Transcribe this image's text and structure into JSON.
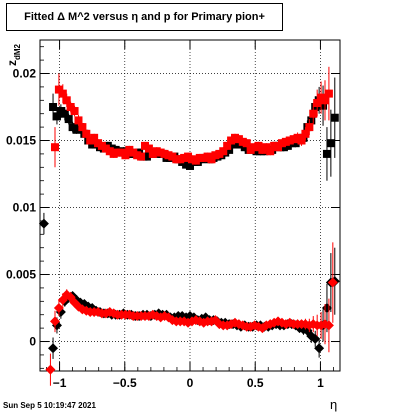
{
  "title": "Fitted Δ M^2 versus η and p for Primary pion+",
  "footer": "Sun Sep  5 10:19:47 2021",
  "chart_data": {
    "type": "scatter",
    "title": "Fitted Δ M^2 versus η and p for Primary pion+",
    "xlabel": "η",
    "ylabel": "z_{dM2}",
    "xlim": [
      -1.15,
      1.15
    ],
    "ylim": [
      -0.0022,
      0.0225
    ],
    "x_ticks": [
      "−1",
      "−0.5",
      "0",
      "0.5",
      "1"
    ],
    "y_ticks": [
      "0",
      "0.005",
      "0.01",
      "0.015",
      "0.02"
    ],
    "grid": true,
    "series": [
      {
        "color": "#000000",
        "marker": "square",
        "x": [
          -1.05,
          -1.02,
          -0.99,
          -0.96,
          -0.93,
          -0.9,
          -0.87,
          -0.84,
          -0.81,
          -0.78,
          -0.75,
          -0.72,
          -0.69,
          -0.66,
          -0.63,
          -0.6,
          -0.57,
          -0.54,
          -0.51,
          -0.48,
          -0.45,
          -0.42,
          -0.39,
          -0.36,
          -0.33,
          -0.3,
          -0.27,
          -0.24,
          -0.21,
          -0.18,
          -0.15,
          -0.12,
          -0.09,
          -0.06,
          -0.03,
          0.0,
          0.03,
          0.06,
          0.09,
          0.12,
          0.15,
          0.18,
          0.21,
          0.24,
          0.27,
          0.3,
          0.33,
          0.36,
          0.39,
          0.42,
          0.45,
          0.48,
          0.51,
          0.54,
          0.57,
          0.6,
          0.63,
          0.66,
          0.69,
          0.72,
          0.75,
          0.78,
          0.81,
          0.84,
          0.87,
          0.9,
          0.93,
          0.96,
          0.99,
          1.02,
          1.05,
          1.08,
          1.11
        ],
        "y": [
          0.0175,
          0.0168,
          0.0172,
          0.017,
          0.0166,
          0.016,
          0.0158,
          0.016,
          0.0155,
          0.015,
          0.0147,
          0.0147,
          0.0145,
          0.0144,
          0.0146,
          0.0144,
          0.0143,
          0.0141,
          0.0142,
          0.014,
          0.014,
          0.014,
          0.0141,
          0.0138,
          0.0138,
          0.014,
          0.0141,
          0.014,
          0.014,
          0.0137,
          0.0137,
          0.0138,
          0.0136,
          0.0134,
          0.0132,
          0.0131,
          0.0134,
          0.0134,
          0.0136,
          0.0137,
          0.0136,
          0.0137,
          0.0138,
          0.0139,
          0.0141,
          0.0143,
          0.0147,
          0.0148,
          0.0147,
          0.0145,
          0.0143,
          0.0144,
          0.0142,
          0.0142,
          0.0142,
          0.0143,
          0.0143,
          0.0146,
          0.0145,
          0.0145,
          0.0146,
          0.0148,
          0.0148,
          0.015,
          0.0152,
          0.016,
          0.0165,
          0.0175,
          0.018,
          0.0176,
          0.014,
          0.0148,
          0.0167
        ],
        "err": [
          0.001,
          0.0006,
          0.0005,
          0.0005,
          0.0004,
          0.0004,
          0.0003,
          0.0003,
          0.0003,
          0.0003,
          0.0003,
          0.0003,
          0.0003,
          0.0003,
          0.0003,
          0.0003,
          0.0003,
          0.0003,
          0.0003,
          0.0003,
          0.0003,
          0.0003,
          0.0003,
          0.0003,
          0.0003,
          0.0003,
          0.0003,
          0.0003,
          0.0003,
          0.0003,
          0.0003,
          0.0003,
          0.0003,
          0.0003,
          0.0003,
          0.0003,
          0.0003,
          0.0003,
          0.0003,
          0.0003,
          0.0003,
          0.0003,
          0.0003,
          0.0003,
          0.0003,
          0.0003,
          0.0003,
          0.0003,
          0.0003,
          0.0003,
          0.0003,
          0.0003,
          0.0003,
          0.0003,
          0.0003,
          0.0003,
          0.0003,
          0.0003,
          0.0003,
          0.0003,
          0.0003,
          0.0003,
          0.0003,
          0.0003,
          0.0004,
          0.0005,
          0.0006,
          0.0008,
          0.001,
          0.0015,
          0.002,
          0.0025,
          0.003
        ]
      },
      {
        "color": "#ff0000",
        "marker": "square",
        "x": [
          -1.035,
          -1.005,
          -0.975,
          -0.945,
          -0.915,
          -0.885,
          -0.855,
          -0.825,
          -0.795,
          -0.765,
          -0.735,
          -0.705,
          -0.675,
          -0.645,
          -0.615,
          -0.585,
          -0.555,
          -0.525,
          -0.495,
          -0.465,
          -0.435,
          -0.405,
          -0.375,
          -0.345,
          -0.315,
          -0.285,
          -0.255,
          -0.225,
          -0.195,
          -0.165,
          -0.135,
          -0.105,
          -0.075,
          -0.045,
          -0.015,
          0.015,
          0.045,
          0.075,
          0.105,
          0.135,
          0.165,
          0.195,
          0.225,
          0.255,
          0.285,
          0.315,
          0.345,
          0.375,
          0.405,
          0.435,
          0.465,
          0.495,
          0.525,
          0.555,
          0.585,
          0.615,
          0.645,
          0.675,
          0.705,
          0.735,
          0.765,
          0.795,
          0.825,
          0.855,
          0.885,
          0.915,
          0.945,
          0.975,
          1.005,
          1.035,
          1.065
        ],
        "y": [
          0.0145,
          0.0188,
          0.0185,
          0.018,
          0.0175,
          0.0172,
          0.0165,
          0.016,
          0.0155,
          0.015,
          0.0152,
          0.0148,
          0.0146,
          0.0144,
          0.0142,
          0.014,
          0.0141,
          0.0141,
          0.0139,
          0.0143,
          0.0141,
          0.0139,
          0.0138,
          0.0146,
          0.0144,
          0.014,
          0.0142,
          0.0141,
          0.014,
          0.0139,
          0.0138,
          0.0136,
          0.0136,
          0.0137,
          0.0138,
          0.0136,
          0.0135,
          0.0137,
          0.0137,
          0.0138,
          0.0136,
          0.0139,
          0.014,
          0.0142,
          0.0146,
          0.015,
          0.0152,
          0.0151,
          0.0149,
          0.0148,
          0.0143,
          0.0145,
          0.0146,
          0.0143,
          0.0145,
          0.0142,
          0.0146,
          0.0145,
          0.0148,
          0.0149,
          0.015,
          0.0151,
          0.0152,
          0.015,
          0.0155,
          0.016,
          0.017,
          0.0178,
          0.0182,
          0.018,
          0.0185
        ],
        "err": [
          0.0015,
          0.0012,
          0.0007,
          0.0005,
          0.0004,
          0.0004,
          0.0004,
          0.0003,
          0.0003,
          0.0003,
          0.0003,
          0.0003,
          0.0003,
          0.0003,
          0.0003,
          0.0003,
          0.0003,
          0.0003,
          0.0003,
          0.0003,
          0.0003,
          0.0003,
          0.0003,
          0.0003,
          0.0003,
          0.0003,
          0.0003,
          0.0003,
          0.0003,
          0.0003,
          0.0003,
          0.0003,
          0.0003,
          0.0003,
          0.0003,
          0.0003,
          0.0003,
          0.0003,
          0.0003,
          0.0003,
          0.0003,
          0.0003,
          0.0003,
          0.0003,
          0.0003,
          0.0003,
          0.0003,
          0.0003,
          0.0003,
          0.0003,
          0.0003,
          0.0003,
          0.0003,
          0.0003,
          0.0003,
          0.0003,
          0.0003,
          0.0003,
          0.0003,
          0.0003,
          0.0003,
          0.0003,
          0.0004,
          0.0004,
          0.0005,
          0.0006,
          0.0008,
          0.001,
          0.0012,
          0.0015,
          0.002
        ]
      },
      {
        "color": "#000000",
        "marker": "diamond",
        "x": [
          -1.12,
          -1.05,
          -1.02,
          -0.99,
          -0.96,
          -0.93,
          -0.9,
          -0.87,
          -0.84,
          -0.81,
          -0.78,
          -0.75,
          -0.72,
          -0.69,
          -0.66,
          -0.63,
          -0.6,
          -0.57,
          -0.54,
          -0.51,
          -0.48,
          -0.45,
          -0.42,
          -0.39,
          -0.36,
          -0.33,
          -0.3,
          -0.27,
          -0.24,
          -0.21,
          -0.18,
          -0.15,
          -0.12,
          -0.09,
          -0.06,
          -0.03,
          0.0,
          0.03,
          0.06,
          0.09,
          0.12,
          0.15,
          0.18,
          0.21,
          0.24,
          0.27,
          0.3,
          0.33,
          0.36,
          0.39,
          0.42,
          0.45,
          0.48,
          0.51,
          0.54,
          0.57,
          0.6,
          0.63,
          0.66,
          0.69,
          0.72,
          0.75,
          0.78,
          0.81,
          0.84,
          0.87,
          0.9,
          0.93,
          0.96,
          0.99,
          1.02,
          1.05,
          1.08,
          1.11
        ],
        "y": [
          0.0088,
          -0.0005,
          0.0012,
          0.0022,
          0.003,
          0.0033,
          0.0034,
          0.0031,
          0.0029,
          0.0028,
          0.0026,
          0.0025,
          0.0023,
          0.0022,
          0.0021,
          0.0021,
          0.002,
          0.002,
          0.002,
          0.0021,
          0.002,
          0.002,
          0.0019,
          0.0019,
          0.002,
          0.002,
          0.0019,
          0.002,
          0.0021,
          0.002,
          0.002,
          0.0018,
          0.0018,
          0.0019,
          0.0019,
          0.0018,
          0.0019,
          0.0018,
          0.0016,
          0.0017,
          0.0018,
          0.0016,
          0.0016,
          0.0015,
          0.0014,
          0.0014,
          0.0013,
          0.0013,
          0.0012,
          0.0011,
          0.0012,
          0.0011,
          0.0011,
          0.0012,
          0.0012,
          0.0011,
          0.0011,
          0.0012,
          0.0013,
          0.0012,
          0.0012,
          0.0013,
          0.0013,
          0.0012,
          0.001,
          0.0009,
          0.0008,
          0.0004,
          0.0002,
          -0.0005,
          0.0012,
          0.0025,
          0.0044,
          0.0045
        ],
        "err": [
          0.0008,
          0.0008,
          0.0006,
          0.0005,
          0.0004,
          0.0004,
          0.0003,
          0.0003,
          0.0003,
          0.0003,
          0.0003,
          0.0003,
          0.0003,
          0.0003,
          0.0003,
          0.0003,
          0.0003,
          0.0003,
          0.0003,
          0.0003,
          0.0003,
          0.0003,
          0.0003,
          0.0003,
          0.0003,
          0.0003,
          0.0003,
          0.0003,
          0.0003,
          0.0003,
          0.0003,
          0.0003,
          0.0003,
          0.0003,
          0.0003,
          0.0003,
          0.0003,
          0.0003,
          0.0003,
          0.0003,
          0.0003,
          0.0003,
          0.0003,
          0.0003,
          0.0003,
          0.0003,
          0.0003,
          0.0003,
          0.0003,
          0.0003,
          0.0003,
          0.0003,
          0.0003,
          0.0003,
          0.0003,
          0.0003,
          0.0003,
          0.0003,
          0.0003,
          0.0003,
          0.0003,
          0.0003,
          0.0003,
          0.0003,
          0.0003,
          0.0004,
          0.0004,
          0.0005,
          0.0006,
          0.0007,
          0.0012,
          0.0018,
          0.0022,
          0.0025
        ]
      },
      {
        "color": "#ff0000",
        "marker": "diamond",
        "x": [
          -1.07,
          -1.035,
          -1.005,
          -0.975,
          -0.945,
          -0.915,
          -0.885,
          -0.855,
          -0.825,
          -0.795,
          -0.765,
          -0.735,
          -0.705,
          -0.675,
          -0.645,
          -0.615,
          -0.585,
          -0.555,
          -0.525,
          -0.495,
          -0.465,
          -0.435,
          -0.405,
          -0.375,
          -0.345,
          -0.315,
          -0.285,
          -0.255,
          -0.225,
          -0.195,
          -0.165,
          -0.135,
          -0.105,
          -0.075,
          -0.045,
          -0.015,
          0.015,
          0.045,
          0.075,
          0.105,
          0.135,
          0.165,
          0.195,
          0.225,
          0.255,
          0.285,
          0.315,
          0.345,
          0.375,
          0.405,
          0.435,
          0.465,
          0.495,
          0.525,
          0.555,
          0.585,
          0.615,
          0.645,
          0.675,
          0.705,
          0.735,
          0.765,
          0.795,
          0.825,
          0.855,
          0.885,
          0.915,
          0.945,
          0.975,
          1.005,
          1.035,
          1.065,
          1.095
        ],
        "y": [
          -0.0021,
          0.0015,
          0.0025,
          0.0031,
          0.0035,
          0.0033,
          0.0029,
          0.0026,
          0.0024,
          0.0023,
          0.0022,
          0.0022,
          0.0022,
          0.0021,
          0.0021,
          0.0022,
          0.0021,
          0.002,
          0.002,
          0.002,
          0.002,
          0.0019,
          0.0019,
          0.0019,
          0.0019,
          0.0019,
          0.002,
          0.0019,
          0.0018,
          0.0019,
          0.0018,
          0.0016,
          0.0015,
          0.0015,
          0.0015,
          0.0014,
          0.0015,
          0.0016,
          0.0015,
          0.0014,
          0.0015,
          0.0015,
          0.0016,
          0.0013,
          0.0012,
          0.0012,
          0.0013,
          0.0014,
          0.0013,
          0.0012,
          0.0011,
          0.0011,
          0.0012,
          0.0011,
          0.001,
          0.0012,
          0.0013,
          0.0014,
          0.0015,
          0.0014,
          0.0013,
          0.0014,
          0.0013,
          0.0013,
          0.0013,
          0.0013,
          0.0012,
          0.0013,
          0.0012,
          0.0012,
          0.0013,
          0.0012,
          0.0044
        ],
        "err": [
          0.0012,
          0.0008,
          0.0006,
          0.0005,
          0.0004,
          0.0004,
          0.0003,
          0.0003,
          0.0003,
          0.0003,
          0.0003,
          0.0003,
          0.0003,
          0.0003,
          0.0003,
          0.0003,
          0.0003,
          0.0003,
          0.0003,
          0.0003,
          0.0003,
          0.0003,
          0.0003,
          0.0003,
          0.0003,
          0.0003,
          0.0003,
          0.0003,
          0.0003,
          0.0003,
          0.0003,
          0.0003,
          0.0003,
          0.0003,
          0.0003,
          0.0003,
          0.0003,
          0.0003,
          0.0003,
          0.0003,
          0.0003,
          0.0003,
          0.0003,
          0.0003,
          0.0003,
          0.0003,
          0.0003,
          0.0003,
          0.0003,
          0.0003,
          0.0003,
          0.0003,
          0.0003,
          0.0003,
          0.0003,
          0.0003,
          0.0003,
          0.0003,
          0.0003,
          0.0003,
          0.0003,
          0.0003,
          0.0003,
          0.0003,
          0.0003,
          0.0004,
          0.0005,
          0.0006,
          0.0008,
          0.001,
          0.0015,
          0.002,
          0.003
        ]
      }
    ]
  }
}
